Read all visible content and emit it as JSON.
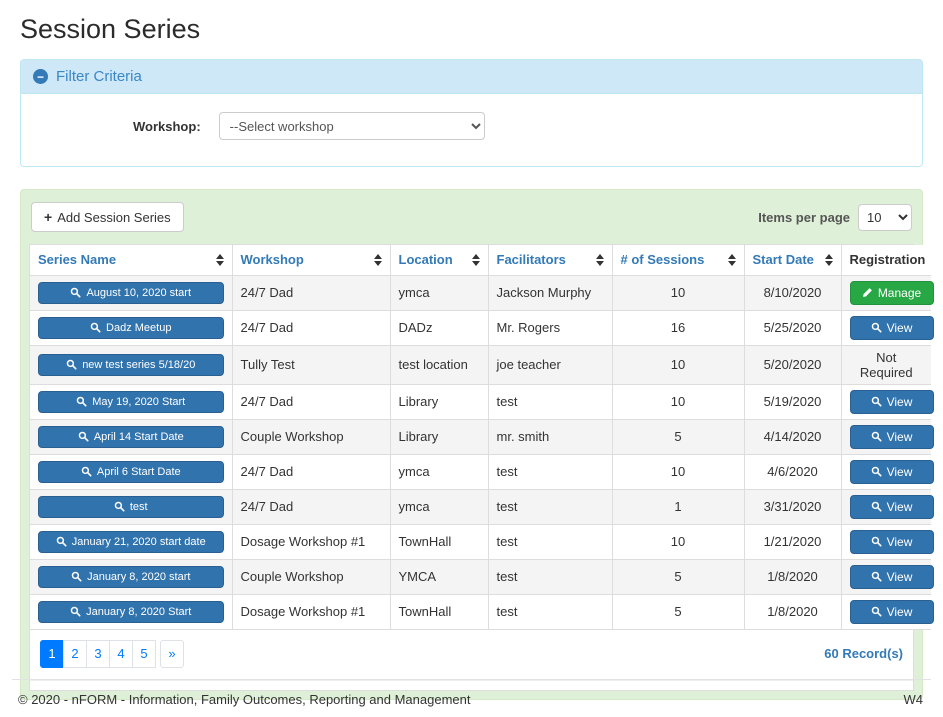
{
  "page": {
    "title": "Session Series"
  },
  "filter": {
    "header": "Filter Criteria",
    "collapse_icon_glyph": "−",
    "workshop_label": "Workshop:",
    "workshop_selected": "--Select workshop"
  },
  "toolbar": {
    "add_button_label": "Add Session Series",
    "add_button_icon": "+",
    "items_per_page_label": "Items per page",
    "items_per_page_value": "10"
  },
  "table": {
    "columns": [
      {
        "label": "Series Name",
        "sortable": true
      },
      {
        "label": "Workshop",
        "sortable": true
      },
      {
        "label": "Location",
        "sortable": true
      },
      {
        "label": "Facilitators",
        "sortable": true
      },
      {
        "label": "# of Sessions",
        "sortable": true
      },
      {
        "label": "Start Date",
        "sortable": true
      },
      {
        "label": "Registration",
        "sortable": false
      }
    ],
    "rows": [
      {
        "series_name": "August 10, 2020 start",
        "workshop": "24/7 Dad",
        "location": "ymca",
        "facilitators": "Jackson Murphy",
        "sessions": "10",
        "start_date": "8/10/2020",
        "registration": {
          "type": "manage",
          "label": "Manage"
        }
      },
      {
        "series_name": "Dadz Meetup",
        "workshop": "24/7 Dad",
        "location": "DADz",
        "facilitators": "Mr. Rogers",
        "sessions": "16",
        "start_date": "5/25/2020",
        "registration": {
          "type": "view",
          "label": "View"
        }
      },
      {
        "series_name": "new test series 5/18/20",
        "workshop": "Tully Test",
        "location": "test location",
        "facilitators": "joe teacher",
        "sessions": "10",
        "start_date": "5/20/2020",
        "registration": {
          "type": "text",
          "label": "Not Required"
        }
      },
      {
        "series_name": "May 19, 2020 Start",
        "workshop": "24/7 Dad",
        "location": "Library",
        "facilitators": "test",
        "sessions": "10",
        "start_date": "5/19/2020",
        "registration": {
          "type": "view",
          "label": "View"
        }
      },
      {
        "series_name": "April 14 Start Date",
        "workshop": "Couple Workshop",
        "location": "Library",
        "facilitators": "mr. smith",
        "sessions": "5",
        "start_date": "4/14/2020",
        "registration": {
          "type": "view",
          "label": "View"
        }
      },
      {
        "series_name": "April 6 Start Date",
        "workshop": "24/7 Dad",
        "location": "ymca",
        "facilitators": "test",
        "sessions": "10",
        "start_date": "4/6/2020",
        "registration": {
          "type": "view",
          "label": "View"
        }
      },
      {
        "series_name": "test",
        "workshop": "24/7 Dad",
        "location": "ymca",
        "facilitators": "test",
        "sessions": "1",
        "start_date": "3/31/2020",
        "registration": {
          "type": "view",
          "label": "View"
        }
      },
      {
        "series_name": "January 21, 2020 start date",
        "workshop": "Dosage Workshop #1",
        "location": "TownHall",
        "facilitators": "test",
        "sessions": "10",
        "start_date": "1/21/2020",
        "registration": {
          "type": "view",
          "label": "View"
        }
      },
      {
        "series_name": "January 8, 2020 start",
        "workshop": "Couple Workshop",
        "location": "YMCA",
        "facilitators": "test",
        "sessions": "5",
        "start_date": "1/8/2020",
        "registration": {
          "type": "view",
          "label": "View"
        }
      },
      {
        "series_name": "January 8, 2020 Start",
        "workshop": "Dosage Workshop #1",
        "location": "TownHall",
        "facilitators": "test",
        "sessions": "5",
        "start_date": "1/8/2020",
        "registration": {
          "type": "view",
          "label": "View"
        }
      }
    ]
  },
  "pagination": {
    "pages": [
      "1",
      "2",
      "3",
      "4",
      "5"
    ],
    "active_page": "1",
    "next_label": "»",
    "record_count": "60 Record(s)"
  },
  "footer": {
    "copyright": "© 2020 - nFORM - Information, Family Outcomes, Reporting and Management",
    "version": "W4"
  },
  "colors": {
    "accent_blue": "#337ab7",
    "row_button_blue": "#3173ad",
    "manage_green": "#28a745",
    "pagination_active_blue": "#007bff",
    "panel_green_bg": "#dff0d8",
    "filter_header_bg": "#cfe8f7"
  }
}
